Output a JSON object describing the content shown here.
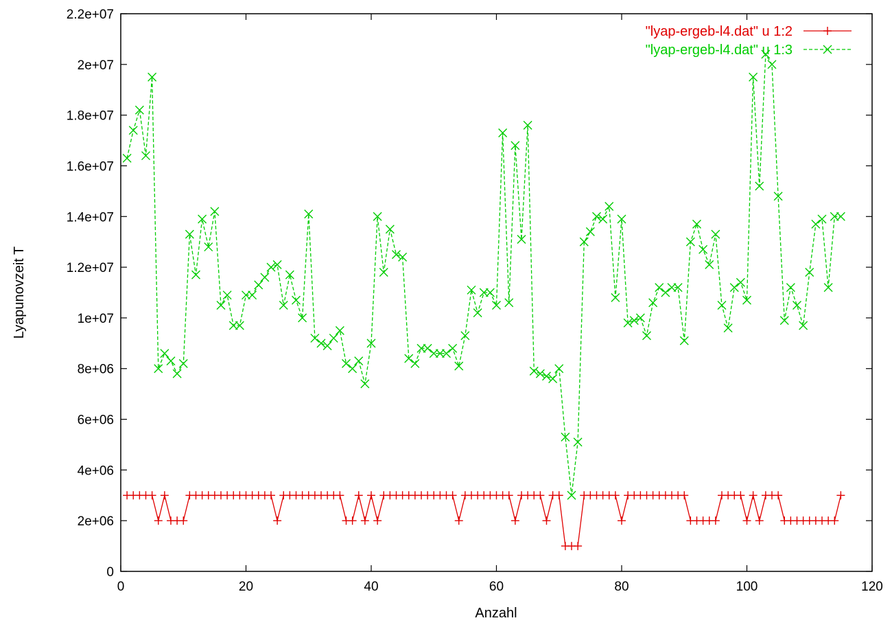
{
  "chart_data": {
    "type": "line",
    "xlabel": "Anzahl",
    "ylabel": "Lyapunovzeit T",
    "xlim": [
      0,
      120
    ],
    "ylim": [
      0,
      22000000
    ],
    "x_ticks": [
      0,
      20,
      40,
      60,
      80,
      100,
      120
    ],
    "x_tick_labels": [
      "0",
      "20",
      "40",
      "60",
      "80",
      "100",
      "120"
    ],
    "y_ticks": [
      0,
      2000000,
      4000000,
      6000000,
      8000000,
      10000000,
      12000000,
      14000000,
      16000000,
      18000000,
      20000000,
      22000000
    ],
    "y_tick_labels": [
      "0",
      "2e+06",
      "4e+06",
      "6e+06",
      "8e+06",
      "1e+07",
      "1.2e+07",
      "1.4e+07",
      "1.6e+07",
      "1.8e+07",
      "2e+07",
      "2.2e+07"
    ],
    "grid": false,
    "legend_position": "top-right",
    "series": [
      {
        "name": "\"lyap-ergeb-l4.dat\" u 1:2",
        "color": "#e00000",
        "marker": "plus",
        "line": "solid",
        "values": [
          3000000,
          3000000,
          3000000,
          3000000,
          3000000,
          2000000,
          3000000,
          2000000,
          2000000,
          2000000,
          3000000,
          3000000,
          3000000,
          3000000,
          3000000,
          3000000,
          3000000,
          3000000,
          3000000,
          3000000,
          3000000,
          3000000,
          3000000,
          3000000,
          2000000,
          3000000,
          3000000,
          3000000,
          3000000,
          3000000,
          3000000,
          3000000,
          3000000,
          3000000,
          3000000,
          2000000,
          2000000,
          3000000,
          2000000,
          3000000,
          2000000,
          3000000,
          3000000,
          3000000,
          3000000,
          3000000,
          3000000,
          3000000,
          3000000,
          3000000,
          3000000,
          3000000,
          3000000,
          2000000,
          3000000,
          3000000,
          3000000,
          3000000,
          3000000,
          3000000,
          3000000,
          3000000,
          2000000,
          3000000,
          3000000,
          3000000,
          3000000,
          2000000,
          3000000,
          3000000,
          1000000,
          1000000,
          1000000,
          3000000,
          3000000,
          3000000,
          3000000,
          3000000,
          3000000,
          2000000,
          3000000,
          3000000,
          3000000,
          3000000,
          3000000,
          3000000,
          3000000,
          3000000,
          3000000,
          3000000,
          2000000,
          2000000,
          2000000,
          2000000,
          2000000,
          3000000,
          3000000,
          3000000,
          3000000,
          2000000,
          3000000,
          2000000,
          3000000,
          3000000,
          3000000,
          2000000,
          2000000,
          2000000,
          2000000,
          2000000,
          2000000,
          2000000,
          2000000,
          2000000,
          3000000
        ]
      },
      {
        "name": "\"lyap-ergeb-l4.dat\" u 1:3",
        "color": "#00cc00",
        "marker": "cross",
        "line": "dashed",
        "values": [
          16300000,
          17400000,
          18200000,
          16400000,
          19500000,
          8000000,
          8600000,
          8300000,
          7800000,
          8200000,
          13300000,
          11700000,
          13900000,
          12800000,
          14200000,
          10500000,
          10900000,
          9700000,
          9700000,
          10900000,
          10900000,
          11300000,
          11600000,
          12000000,
          12100000,
          10500000,
          11700000,
          10700000,
          10000000,
          14100000,
          9200000,
          9000000,
          8900000,
          9200000,
          9500000,
          8200000,
          8000000,
          8300000,
          7400000,
          9000000,
          14000000,
          11800000,
          13500000,
          12500000,
          12400000,
          8400000,
          8200000,
          8800000,
          8800000,
          8600000,
          8600000,
          8600000,
          8800000,
          8100000,
          9300000,
          11100000,
          10200000,
          11000000,
          11000000,
          10500000,
          17300000,
          10600000,
          16800000,
          13100000,
          17600000,
          7900000,
          7800000,
          7700000,
          7600000,
          8000000,
          5300000,
          3000000,
          5100000,
          13000000,
          13400000,
          14000000,
          13900000,
          14400000,
          10800000,
          13900000,
          9800000,
          9900000,
          10000000,
          9300000,
          10600000,
          11200000,
          11000000,
          11200000,
          11200000,
          9100000,
          13000000,
          13700000,
          12700000,
          12100000,
          13300000,
          10500000,
          9600000,
          11200000,
          11400000,
          10700000,
          19500000,
          15200000,
          20400000,
          20000000,
          14800000,
          9900000,
          11200000,
          10500000,
          9700000,
          11800000,
          13700000,
          13900000,
          11200000,
          14000000,
          14000000
        ]
      }
    ]
  }
}
